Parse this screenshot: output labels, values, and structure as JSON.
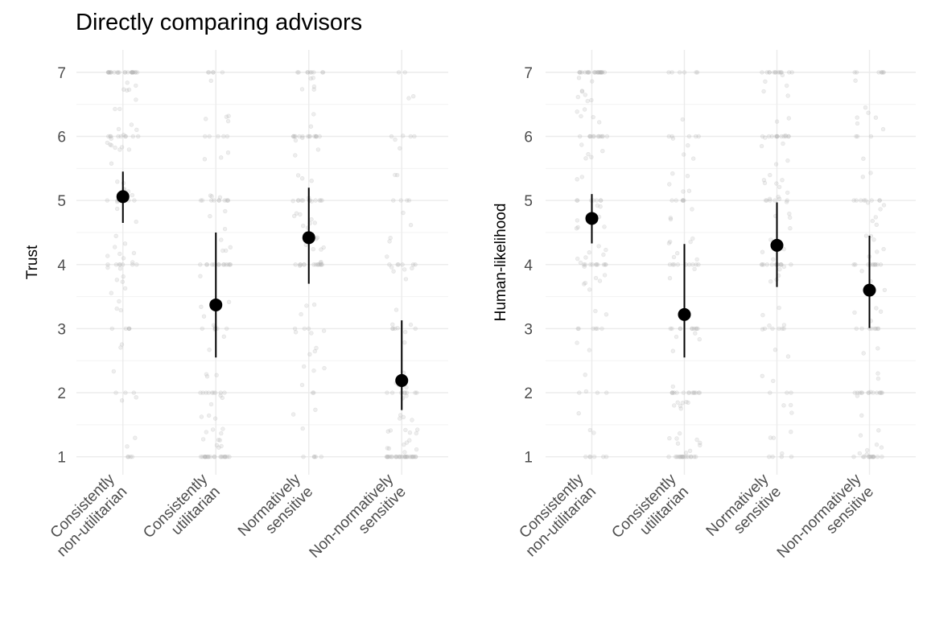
{
  "figure": {
    "title": "Directly comparing advisors"
  },
  "colors": {
    "grid_major": "#ebebeb",
    "grid_minor": "#f3f3f3",
    "tick_text": "#4d4d4d",
    "axis_title": "#000000",
    "point": "#000000",
    "jitter": "#b3b3b3"
  },
  "chart_data": [
    {
      "type": "scatter",
      "title": "Directly comparing advisors",
      "xlabel": "",
      "ylabel": "Trust",
      "ylim": [
        0.72,
        7.35
      ],
      "yticks": [
        1,
        2,
        3,
        4,
        5,
        6,
        7
      ],
      "grid": true,
      "legend": "none",
      "categories": [
        "Consistently\nnon-utilitarian",
        "Consistently\nutilitarian",
        "Normatively\nsensitive",
        "Non-normatively\nsensitive"
      ],
      "series": [
        {
          "values": [
            5.06,
            3.37,
            4.42,
            2.19
          ],
          "ci_low": [
            4.65,
            2.55,
            3.7,
            1.73
          ],
          "ci_high": [
            5.45,
            4.5,
            5.2,
            3.13
          ]
        }
      ],
      "raw_distribution": [
        {
          "1": 6,
          "2": 6,
          "3": 10,
          "4": 22,
          "5": 16,
          "6": 24,
          "7": 30
        },
        {
          "1": 30,
          "2": 18,
          "3": 14,
          "4": 18,
          "5": 16,
          "6": 12,
          "7": 6
        },
        {
          "1": 6,
          "2": 8,
          "3": 12,
          "4": 22,
          "5": 24,
          "6": 20,
          "7": 14
        },
        {
          "1": 40,
          "2": 20,
          "3": 10,
          "4": 14,
          "5": 8,
          "6": 6,
          "7": 4
        }
      ]
    },
    {
      "type": "scatter",
      "xlabel": "",
      "ylabel": "Human-likelihood",
      "ylim": [
        0.72,
        7.35
      ],
      "yticks": [
        1,
        2,
        3,
        4,
        5,
        6,
        7
      ],
      "grid": true,
      "legend": "none",
      "categories": [
        "Consistently\nnon-utilitarian",
        "Consistently\nutilitarian",
        "Normatively\nsensitive",
        "Non-normatively\nsensitive"
      ],
      "series": [
        {
          "values": [
            4.72,
            3.22,
            4.3,
            3.6
          ],
          "ci_low": [
            4.33,
            2.55,
            3.65,
            3.01
          ],
          "ci_high": [
            5.1,
            4.32,
            4.97,
            4.45
          ]
        }
      ],
      "raw_distribution": [
        {
          "1": 8,
          "2": 6,
          "3": 10,
          "4": 24,
          "5": 16,
          "6": 22,
          "7": 32
        },
        {
          "1": 26,
          "2": 22,
          "3": 14,
          "4": 18,
          "5": 14,
          "6": 10,
          "7": 6
        },
        {
          "1": 8,
          "2": 8,
          "3": 12,
          "4": 22,
          "5": 20,
          "6": 20,
          "7": 18
        },
        {
          "1": 20,
          "2": 18,
          "3": 14,
          "4": 20,
          "5": 16,
          "6": 10,
          "7": 8
        }
      ]
    }
  ]
}
